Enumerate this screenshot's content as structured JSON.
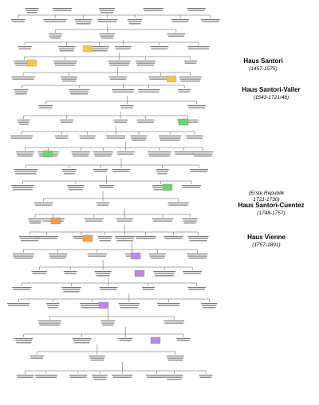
{
  "houses": [
    {
      "name": "Haus Santori",
      "period": "(1457-1575)"
    },
    {
      "name": "Haus Santori-Valler",
      "period": "(1543-1721/46)"
    },
    {
      "name": "Haus Santori-Cuentez",
      "period": "(1748-1757)"
    },
    {
      "name": "Haus Vienne",
      "period": "(1757-1891)"
    }
  ],
  "interregnum": {
    "name": "(Erste Republik",
    "period": "1721-1730)"
  }
}
